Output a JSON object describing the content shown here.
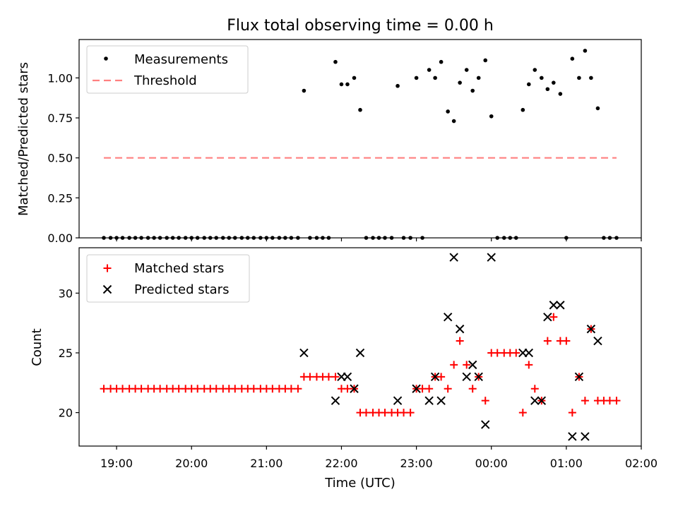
{
  "title": "Flux total observing time = 0.00 h",
  "chart_data": [
    {
      "type": "scatter",
      "ylabel": "Matched/Predicted stars",
      "ylim": [
        0,
        1.24
      ],
      "yticks": [
        "0.00",
        "0.25",
        "0.50",
        "0.75",
        "1.00"
      ],
      "ytick_values": [
        0,
        0.25,
        0.5,
        0.75,
        1.0
      ],
      "legend": {
        "position": "top-left",
        "entries": [
          "Measurements",
          "Threshold"
        ]
      },
      "series": [
        {
          "name": "Measurements",
          "marker": "dot",
          "color": "#000000",
          "points": [
            [
              18.83,
              0
            ],
            [
              18.92,
              0
            ],
            [
              19.0,
              0
            ],
            [
              19.08,
              0
            ],
            [
              19.17,
              0
            ],
            [
              19.25,
              0
            ],
            [
              19.33,
              0
            ],
            [
              19.42,
              0
            ],
            [
              19.5,
              0
            ],
            [
              19.58,
              0
            ],
            [
              19.67,
              0
            ],
            [
              19.75,
              0
            ],
            [
              19.83,
              0
            ],
            [
              19.92,
              0
            ],
            [
              20.0,
              0
            ],
            [
              20.08,
              0
            ],
            [
              20.17,
              0
            ],
            [
              20.25,
              0
            ],
            [
              20.33,
              0
            ],
            [
              20.42,
              0
            ],
            [
              20.5,
              0
            ],
            [
              20.58,
              0
            ],
            [
              20.67,
              0
            ],
            [
              20.75,
              0
            ],
            [
              20.83,
              0
            ],
            [
              20.92,
              0
            ],
            [
              21.0,
              0
            ],
            [
              21.08,
              0
            ],
            [
              21.17,
              0
            ],
            [
              21.25,
              0
            ],
            [
              21.33,
              0
            ],
            [
              21.42,
              0
            ],
            [
              21.58,
              0
            ],
            [
              21.67,
              0
            ],
            [
              21.75,
              0
            ],
            [
              21.83,
              0
            ],
            [
              21.5,
              0.92
            ],
            [
              21.92,
              1.1
            ],
            [
              22.0,
              0.96
            ],
            [
              22.08,
              0.96
            ],
            [
              22.17,
              1.0
            ],
            [
              22.25,
              0.8
            ],
            [
              22.33,
              0
            ],
            [
              22.42,
              0
            ],
            [
              22.5,
              0
            ],
            [
              22.58,
              0
            ],
            [
              22.67,
              0
            ],
            [
              22.83,
              0
            ],
            [
              22.92,
              0
            ],
            [
              23.08,
              0
            ],
            [
              22.75,
              0.95
            ],
            [
              23.0,
              1.0
            ],
            [
              23.17,
              1.05
            ],
            [
              23.25,
              1.0
            ],
            [
              23.33,
              1.1
            ],
            [
              23.42,
              0.79
            ],
            [
              23.5,
              0.73
            ],
            [
              23.58,
              0.97
            ],
            [
              23.67,
              1.05
            ],
            [
              23.75,
              0.92
            ],
            [
              23.83,
              1.0
            ],
            [
              23.92,
              1.11
            ],
            [
              24.0,
              0.76
            ],
            [
              24.08,
              0
            ],
            [
              24.17,
              0
            ],
            [
              24.25,
              0
            ],
            [
              24.33,
              0
            ],
            [
              24.42,
              0.8
            ],
            [
              24.5,
              0.96
            ],
            [
              24.58,
              1.05
            ],
            [
              24.67,
              1.0
            ],
            [
              24.75,
              0.93
            ],
            [
              24.83,
              0.97
            ],
            [
              24.92,
              0.9
            ],
            [
              25.0,
              0
            ],
            [
              25.08,
              1.12
            ],
            [
              25.17,
              1.0
            ],
            [
              25.25,
              1.17
            ],
            [
              25.33,
              1.0
            ],
            [
              25.42,
              0.81
            ],
            [
              25.5,
              0
            ],
            [
              25.58,
              0
            ],
            [
              25.67,
              0
            ]
          ]
        },
        {
          "name": "Threshold",
          "marker": "dashed-line",
          "color": "#ff8080",
          "points": [
            [
              18.83,
              0.5
            ],
            [
              25.67,
              0.5
            ]
          ]
        }
      ]
    },
    {
      "type": "scatter",
      "xlabel": "Time (UTC)",
      "ylabel": "Count",
      "xlim": [
        18.5,
        26.0
      ],
      "ylim": [
        17.2,
        33.8
      ],
      "xticks": [
        "19:00",
        "20:00",
        "21:00",
        "22:00",
        "23:00",
        "00:00",
        "01:00",
        "02:00"
      ],
      "xtick_values": [
        19,
        20,
        21,
        22,
        23,
        24,
        25,
        26
      ],
      "yticks": [
        "20",
        "25",
        "30"
      ],
      "ytick_values": [
        20,
        25,
        30
      ],
      "legend": {
        "position": "top-left",
        "entries": [
          "Matched stars",
          "Predicted stars"
        ]
      },
      "series": [
        {
          "name": "Matched stars",
          "marker": "plus",
          "color": "#ff0000",
          "points": [
            [
              18.83,
              22
            ],
            [
              18.92,
              22
            ],
            [
              19.0,
              22
            ],
            [
              19.08,
              22
            ],
            [
              19.17,
              22
            ],
            [
              19.25,
              22
            ],
            [
              19.33,
              22
            ],
            [
              19.42,
              22
            ],
            [
              19.5,
              22
            ],
            [
              19.58,
              22
            ],
            [
              19.67,
              22
            ],
            [
              19.75,
              22
            ],
            [
              19.83,
              22
            ],
            [
              19.92,
              22
            ],
            [
              20.0,
              22
            ],
            [
              20.08,
              22
            ],
            [
              20.17,
              22
            ],
            [
              20.25,
              22
            ],
            [
              20.33,
              22
            ],
            [
              20.42,
              22
            ],
            [
              20.5,
              22
            ],
            [
              20.58,
              22
            ],
            [
              20.67,
              22
            ],
            [
              20.75,
              22
            ],
            [
              20.83,
              22
            ],
            [
              20.92,
              22
            ],
            [
              21.0,
              22
            ],
            [
              21.08,
              22
            ],
            [
              21.17,
              22
            ],
            [
              21.25,
              22
            ],
            [
              21.33,
              22
            ],
            [
              21.42,
              22
            ],
            [
              21.5,
              23
            ],
            [
              21.58,
              23
            ],
            [
              21.67,
              23
            ],
            [
              21.75,
              23
            ],
            [
              21.83,
              23
            ],
            [
              21.92,
              23
            ],
            [
              22.0,
              22
            ],
            [
              22.08,
              22
            ],
            [
              22.17,
              22
            ],
            [
              22.25,
              20
            ],
            [
              22.33,
              20
            ],
            [
              22.42,
              20
            ],
            [
              22.5,
              20
            ],
            [
              22.58,
              20
            ],
            [
              22.67,
              20
            ],
            [
              22.75,
              20
            ],
            [
              22.83,
              20
            ],
            [
              22.92,
              20
            ],
            [
              23.0,
              22
            ],
            [
              23.08,
              22
            ],
            [
              23.17,
              22
            ],
            [
              23.25,
              23
            ],
            [
              23.33,
              23
            ],
            [
              23.42,
              22
            ],
            [
              23.5,
              24
            ],
            [
              23.58,
              26
            ],
            [
              23.67,
              24
            ],
            [
              23.75,
              22
            ],
            [
              23.83,
              23
            ],
            [
              23.92,
              21
            ],
            [
              24.0,
              25
            ],
            [
              24.08,
              25
            ],
            [
              24.17,
              25
            ],
            [
              24.25,
              25
            ],
            [
              24.33,
              25
            ],
            [
              24.42,
              20
            ],
            [
              24.5,
              24
            ],
            [
              24.58,
              22
            ],
            [
              24.67,
              21
            ],
            [
              24.75,
              26
            ],
            [
              24.83,
              28
            ],
            [
              24.92,
              26
            ],
            [
              25.0,
              26
            ],
            [
              25.08,
              20
            ],
            [
              25.17,
              23
            ],
            [
              25.25,
              21
            ],
            [
              25.33,
              27
            ],
            [
              25.42,
              21
            ],
            [
              25.5,
              21
            ],
            [
              25.58,
              21
            ],
            [
              25.67,
              21
            ]
          ]
        },
        {
          "name": "Predicted stars",
          "marker": "x",
          "color": "#000000",
          "points": [
            [
              21.5,
              25
            ],
            [
              21.92,
              21
            ],
            [
              22.0,
              23
            ],
            [
              22.08,
              23
            ],
            [
              22.17,
              22
            ],
            [
              22.25,
              25
            ],
            [
              22.75,
              21
            ],
            [
              23.0,
              22
            ],
            [
              23.17,
              21
            ],
            [
              23.25,
              23
            ],
            [
              23.33,
              21
            ],
            [
              23.42,
              28
            ],
            [
              23.5,
              33
            ],
            [
              23.58,
              27
            ],
            [
              23.67,
              23
            ],
            [
              23.75,
              24
            ],
            [
              23.83,
              23
            ],
            [
              23.92,
              19
            ],
            [
              24.0,
              33
            ],
            [
              24.42,
              25
            ],
            [
              24.5,
              25
            ],
            [
              24.58,
              21
            ],
            [
              24.67,
              21
            ],
            [
              24.75,
              28
            ],
            [
              24.83,
              29
            ],
            [
              24.92,
              29
            ],
            [
              25.08,
              18
            ],
            [
              25.17,
              23
            ],
            [
              25.25,
              18
            ],
            [
              25.33,
              27
            ],
            [
              25.42,
              26
            ]
          ]
        }
      ]
    }
  ]
}
